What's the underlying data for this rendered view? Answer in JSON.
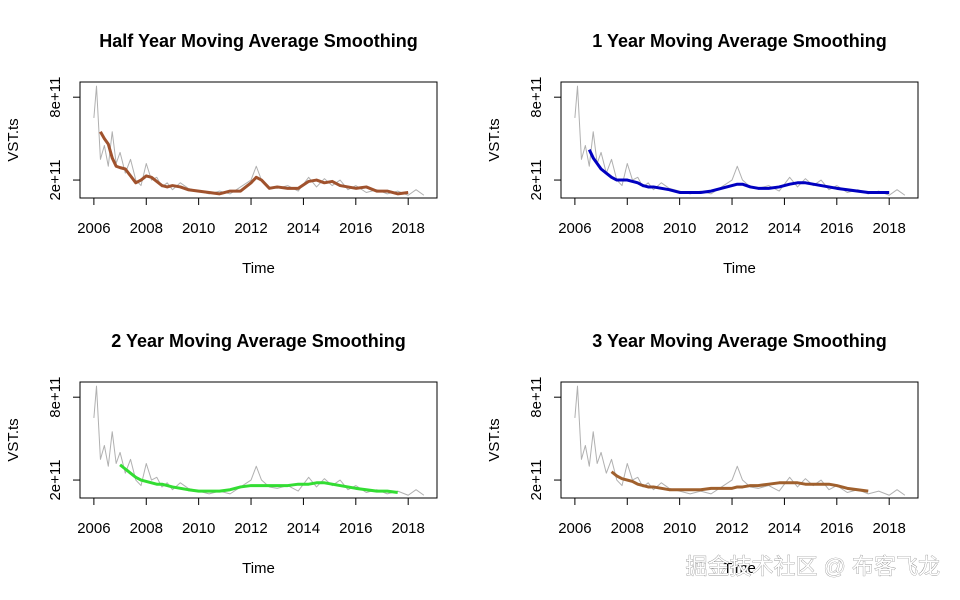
{
  "chart_data": [
    {
      "type": "line",
      "title": "Half Year Moving Average Smoothing",
      "x_label": "Time",
      "y_label": "VST.ts",
      "x": [
        2006,
        2006.1,
        2006.25,
        2006.4,
        2006.55,
        2006.7,
        2006.85,
        2007,
        2007.2,
        2007.4,
        2007.6,
        2007.8,
        2008,
        2008.2,
        2008.4,
        2008.6,
        2008.8,
        2009,
        2009.3,
        2009.6,
        2010,
        2010.4,
        2010.8,
        2011.2,
        2011.6,
        2012,
        2012.2,
        2012.4,
        2012.7,
        2013,
        2013.4,
        2013.8,
        2014.2,
        2014.5,
        2014.8,
        2015.1,
        2015.4,
        2015.7,
        2016,
        2016.4,
        2016.8,
        2017.2,
        2017.6,
        2018,
        2018.3,
        2018.6
      ],
      "series": [
        {
          "color": "#b0b0b0",
          "values": [
            650000000000.0,
            880000000000.0,
            350000000000.0,
            450000000000.0,
            300000000000.0,
            550000000000.0,
            320000000000.0,
            400000000000.0,
            250000000000.0,
            350000000000.0,
            200000000000.0,
            160000000000.0,
            320000000000.0,
            200000000000.0,
            220000000000.0,
            150000000000.0,
            180000000000.0,
            130000000000.0,
            180000000000.0,
            140000000000.0,
            120000000000.0,
            100000000000.0,
            120000000000.0,
            100000000000.0,
            150000000000.0,
            200000000000.0,
            300000000000.0,
            200000000000.0,
            150000000000.0,
            140000000000.0,
            160000000000.0,
            120000000000.0,
            220000000000.0,
            150000000000.0,
            210000000000.0,
            160000000000.0,
            200000000000.0,
            130000000000.0,
            160000000000.0,
            110000000000.0,
            130000000000.0,
            100000000000.0,
            120000000000.0,
            90000000000.0,
            130000000000.0,
            90000000000.0
          ]
        },
        {
          "color": "#a0522d",
          "values": [
            null,
            null,
            550000000000.0,
            500000000000.0,
            460000000000.0,
            360000000000.0,
            300000000000.0,
            290000000000.0,
            280000000000.0,
            230000000000.0,
            180000000000.0,
            200000000000.0,
            230000000000.0,
            220000000000.0,
            190000000000.0,
            160000000000.0,
            150000000000.0,
            160000000000.0,
            150000000000.0,
            130000000000.0,
            120000000000.0,
            110000000000.0,
            100000000000.0,
            120000000000.0,
            120000000000.0,
            180000000000.0,
            220000000000.0,
            200000000000.0,
            140000000000.0,
            150000000000.0,
            140000000000.0,
            140000000000.0,
            190000000000.0,
            200000000000.0,
            180000000000.0,
            190000000000.0,
            160000000000.0,
            150000000000.0,
            140000000000.0,
            150000000000.0,
            120000000000.0,
            120000000000.0,
            100000000000.0,
            110000000000.0,
            null,
            null
          ]
        }
      ],
      "xlim": [
        2005.47,
        2019.1
      ],
      "ylim": [
        70000000000.0,
        910000000000.0
      ],
      "xticks": [
        2006,
        2008,
        2010,
        2012,
        2014,
        2016,
        2018
      ],
      "yticks": [
        {
          "value": 200000000000.0,
          "label": "2e+11"
        },
        {
          "value": 800000000000.0,
          "label": "8e+11"
        }
      ]
    },
    {
      "type": "line",
      "title": "1 Year Moving Average Smoothing",
      "x_label": "Time",
      "y_label": "VST.ts",
      "x": [
        2006,
        2006.1,
        2006.25,
        2006.4,
        2006.55,
        2006.7,
        2006.85,
        2007,
        2007.2,
        2007.4,
        2007.6,
        2007.8,
        2008,
        2008.2,
        2008.4,
        2008.6,
        2008.8,
        2009,
        2009.3,
        2009.6,
        2010,
        2010.4,
        2010.8,
        2011.2,
        2011.6,
        2012,
        2012.2,
        2012.4,
        2012.7,
        2013,
        2013.4,
        2013.8,
        2014.2,
        2014.5,
        2014.8,
        2015.1,
        2015.4,
        2015.7,
        2016,
        2016.4,
        2016.8,
        2017.2,
        2017.6,
        2018,
        2018.3,
        2018.6
      ],
      "series": [
        {
          "color": "#b0b0b0",
          "values": [
            650000000000.0,
            880000000000.0,
            350000000000.0,
            450000000000.0,
            300000000000.0,
            550000000000.0,
            320000000000.0,
            400000000000.0,
            250000000000.0,
            350000000000.0,
            200000000000.0,
            160000000000.0,
            320000000000.0,
            200000000000.0,
            220000000000.0,
            150000000000.0,
            180000000000.0,
            130000000000.0,
            180000000000.0,
            140000000000.0,
            120000000000.0,
            100000000000.0,
            120000000000.0,
            100000000000.0,
            150000000000.0,
            200000000000.0,
            300000000000.0,
            200000000000.0,
            150000000000.0,
            140000000000.0,
            160000000000.0,
            120000000000.0,
            220000000000.0,
            150000000000.0,
            210000000000.0,
            160000000000.0,
            200000000000.0,
            130000000000.0,
            160000000000.0,
            110000000000.0,
            130000000000.0,
            100000000000.0,
            120000000000.0,
            90000000000.0,
            130000000000.0,
            90000000000.0
          ]
        },
        {
          "color": "#0000c0",
          "values": [
            null,
            null,
            null,
            null,
            420000000000.0,
            360000000000.0,
            320000000000.0,
            280000000000.0,
            250000000000.0,
            220000000000.0,
            200000000000.0,
            200000000000.0,
            200000000000.0,
            190000000000.0,
            180000000000.0,
            160000000000.0,
            150000000000.0,
            150000000000.0,
            140000000000.0,
            130000000000.0,
            110000000000.0,
            110000000000.0,
            110000000000.0,
            120000000000.0,
            140000000000.0,
            160000000000.0,
            170000000000.0,
            170000000000.0,
            150000000000.0,
            140000000000.0,
            140000000000.0,
            150000000000.0,
            170000000000.0,
            180000000000.0,
            180000000000.0,
            170000000000.0,
            160000000000.0,
            150000000000.0,
            140000000000.0,
            130000000000.0,
            120000000000.0,
            110000000000.0,
            110000000000.0,
            110000000000.0,
            null,
            null
          ]
        }
      ],
      "xlim": [
        2005.47,
        2019.1
      ],
      "ylim": [
        70000000000.0,
        910000000000.0
      ],
      "xticks": [
        2006,
        2008,
        2010,
        2012,
        2014,
        2016,
        2018
      ],
      "yticks": [
        {
          "value": 200000000000.0,
          "label": "2e+11"
        },
        {
          "value": 800000000000.0,
          "label": "8e+11"
        }
      ]
    },
    {
      "type": "line",
      "title": "2 Year Moving Average Smoothing",
      "x_label": "Time",
      "y_label": "VST.ts",
      "x": [
        2006,
        2006.1,
        2006.25,
        2006.4,
        2006.55,
        2006.7,
        2006.85,
        2007,
        2007.2,
        2007.4,
        2007.6,
        2007.8,
        2008,
        2008.2,
        2008.4,
        2008.6,
        2008.8,
        2009,
        2009.3,
        2009.6,
        2010,
        2010.4,
        2010.8,
        2011.2,
        2011.6,
        2012,
        2012.2,
        2012.4,
        2012.7,
        2013,
        2013.4,
        2013.8,
        2014.2,
        2014.5,
        2014.8,
        2015.1,
        2015.4,
        2015.7,
        2016,
        2016.4,
        2016.8,
        2017.2,
        2017.6,
        2018,
        2018.3,
        2018.6
      ],
      "series": [
        {
          "color": "#b0b0b0",
          "values": [
            650000000000.0,
            880000000000.0,
            350000000000.0,
            450000000000.0,
            300000000000.0,
            550000000000.0,
            320000000000.0,
            400000000000.0,
            250000000000.0,
            350000000000.0,
            200000000000.0,
            160000000000.0,
            320000000000.0,
            200000000000.0,
            220000000000.0,
            150000000000.0,
            180000000000.0,
            130000000000.0,
            180000000000.0,
            140000000000.0,
            120000000000.0,
            100000000000.0,
            120000000000.0,
            100000000000.0,
            150000000000.0,
            200000000000.0,
            300000000000.0,
            200000000000.0,
            150000000000.0,
            140000000000.0,
            160000000000.0,
            120000000000.0,
            220000000000.0,
            150000000000.0,
            210000000000.0,
            160000000000.0,
            200000000000.0,
            130000000000.0,
            160000000000.0,
            110000000000.0,
            130000000000.0,
            100000000000.0,
            120000000000.0,
            90000000000.0,
            130000000000.0,
            90000000000.0
          ]
        },
        {
          "color": "#33dd33",
          "values": [
            null,
            null,
            null,
            null,
            null,
            null,
            null,
            310000000000.0,
            280000000000.0,
            250000000000.0,
            220000000000.0,
            200000000000.0,
            190000000000.0,
            180000000000.0,
            170000000000.0,
            170000000000.0,
            160000000000.0,
            150000000000.0,
            140000000000.0,
            130000000000.0,
            120000000000.0,
            120000000000.0,
            120000000000.0,
            130000000000.0,
            150000000000.0,
            160000000000.0,
            160000000000.0,
            160000000000.0,
            160000000000.0,
            160000000000.0,
            160000000000.0,
            170000000000.0,
            170000000000.0,
            180000000000.0,
            180000000000.0,
            170000000000.0,
            160000000000.0,
            150000000000.0,
            140000000000.0,
            130000000000.0,
            120000000000.0,
            120000000000.0,
            110000000000.0,
            null,
            null,
            null
          ]
        }
      ],
      "xlim": [
        2005.47,
        2019.1
      ],
      "ylim": [
        70000000000.0,
        910000000000.0
      ],
      "xticks": [
        2006,
        2008,
        2010,
        2012,
        2014,
        2016,
        2018
      ],
      "yticks": [
        {
          "value": 200000000000.0,
          "label": "2e+11"
        },
        {
          "value": 800000000000.0,
          "label": "8e+11"
        }
      ]
    },
    {
      "type": "line",
      "title": "3 Year Moving Average Smoothing",
      "x_label": "Time",
      "y_label": "VST.ts",
      "x": [
        2006,
        2006.1,
        2006.25,
        2006.4,
        2006.55,
        2006.7,
        2006.85,
        2007,
        2007.2,
        2007.4,
        2007.6,
        2007.8,
        2008,
        2008.2,
        2008.4,
        2008.6,
        2008.8,
        2009,
        2009.3,
        2009.6,
        2010,
        2010.4,
        2010.8,
        2011.2,
        2011.6,
        2012,
        2012.2,
        2012.4,
        2012.7,
        2013,
        2013.4,
        2013.8,
        2014.2,
        2014.5,
        2014.8,
        2015.1,
        2015.4,
        2015.7,
        2016,
        2016.4,
        2016.8,
        2017.2,
        2017.6,
        2018,
        2018.3,
        2018.6
      ],
      "series": [
        {
          "color": "#b0b0b0",
          "values": [
            650000000000.0,
            880000000000.0,
            350000000000.0,
            450000000000.0,
            300000000000.0,
            550000000000.0,
            320000000000.0,
            400000000000.0,
            250000000000.0,
            350000000000.0,
            200000000000.0,
            160000000000.0,
            320000000000.0,
            200000000000.0,
            220000000000.0,
            150000000000.0,
            180000000000.0,
            130000000000.0,
            180000000000.0,
            140000000000.0,
            120000000000.0,
            100000000000.0,
            120000000000.0,
            100000000000.0,
            150000000000.0,
            200000000000.0,
            300000000000.0,
            200000000000.0,
            150000000000.0,
            140000000000.0,
            160000000000.0,
            120000000000.0,
            220000000000.0,
            150000000000.0,
            210000000000.0,
            160000000000.0,
            200000000000.0,
            130000000000.0,
            160000000000.0,
            110000000000.0,
            130000000000.0,
            100000000000.0,
            120000000000.0,
            90000000000.0,
            130000000000.0,
            90000000000.0
          ]
        },
        {
          "color": "#a0602d",
          "values": [
            null,
            null,
            null,
            null,
            null,
            null,
            null,
            null,
            null,
            260000000000.0,
            230000000000.0,
            210000000000.0,
            200000000000.0,
            190000000000.0,
            170000000000.0,
            160000000000.0,
            150000000000.0,
            150000000000.0,
            140000000000.0,
            130000000000.0,
            130000000000.0,
            130000000000.0,
            130000000000.0,
            140000000000.0,
            140000000000.0,
            140000000000.0,
            150000000000.0,
            150000000000.0,
            160000000000.0,
            160000000000.0,
            170000000000.0,
            180000000000.0,
            180000000000.0,
            180000000000.0,
            170000000000.0,
            170000000000.0,
            170000000000.0,
            170000000000.0,
            160000000000.0,
            140000000000.0,
            130000000000.0,
            120000000000.0,
            null,
            null,
            null,
            null
          ]
        }
      ],
      "xlim": [
        2005.47,
        2019.1
      ],
      "ylim": [
        70000000000.0,
        910000000000.0
      ],
      "xticks": [
        2006,
        2008,
        2010,
        2012,
        2014,
        2016,
        2018
      ],
      "yticks": [
        {
          "value": 200000000000.0,
          "label": "2e+11"
        },
        {
          "value": 800000000000.0,
          "label": "8e+11"
        }
      ]
    }
  ],
  "watermark": "掘金技术社区 @ 布客飞龙"
}
